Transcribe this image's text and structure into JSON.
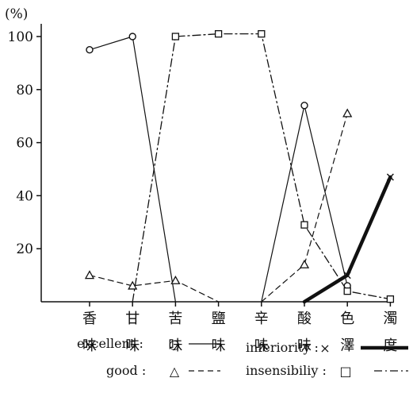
{
  "chart_data": {
    "type": "line",
    "title": "",
    "ylabel": "(%)",
    "xlabel": "",
    "ylim": [
      0,
      100
    ],
    "yticks": [
      20,
      40,
      60,
      80,
      100
    ],
    "categories": [
      {
        "top": "香",
        "bottom": "味"
      },
      {
        "top": "甘",
        "bottom": "味"
      },
      {
        "top": "苦",
        "bottom": "味"
      },
      {
        "top": "鹽",
        "bottom": "味"
      },
      {
        "top": "辛",
        "bottom": "味"
      },
      {
        "top": "酸",
        "bottom": "味"
      },
      {
        "top": "色",
        "bottom": "澤"
      },
      {
        "top": "濁",
        "bottom": "度"
      }
    ],
    "series": [
      {
        "name": "excellent",
        "style": "solid",
        "marker": "circle",
        "segments": [
          [
            [
              0,
              95
            ],
            [
              1,
              100
            ],
            [
              2,
              0
            ]
          ],
          [
            [
              4,
              0
            ],
            [
              5,
              74
            ],
            [
              6,
              6
            ]
          ]
        ]
      },
      {
        "name": "good",
        "style": "dashed",
        "marker": "triangle",
        "segments": [
          [
            [
              0,
              10
            ],
            [
              1,
              6
            ],
            [
              2,
              8
            ],
            [
              3,
              0
            ]
          ],
          [
            [
              4,
              0
            ],
            [
              5,
              14
            ],
            [
              6,
              71
            ]
          ]
        ]
      },
      {
        "name": "inferiority",
        "style": "thick",
        "marker": "x",
        "segments": [
          [
            [
              5,
              0
            ],
            [
              6,
              10
            ],
            [
              7,
              47
            ]
          ]
        ]
      },
      {
        "name": "insensibility",
        "style": "dashdot",
        "marker": "square",
        "segments": [
          [
            [
              1,
              0
            ],
            [
              2,
              100
            ],
            [
              3,
              101
            ],
            [
              4,
              101
            ],
            [
              5,
              29
            ],
            [
              6,
              4
            ],
            [
              7,
              1
            ]
          ]
        ]
      }
    ],
    "legend": [
      {
        "label": "excellent :",
        "symbol": "○",
        "series": "excellent"
      },
      {
        "label": "inferiority :",
        "symbol": "×",
        "series": "inferiority"
      },
      {
        "label": "good :",
        "symbol": "△",
        "series": "good"
      },
      {
        "label": "insensibiliy :",
        "symbol": "□",
        "series": "insensibility"
      }
    ],
    "colors": {
      "ink": "#111111",
      "background": "#ffffff"
    }
  }
}
